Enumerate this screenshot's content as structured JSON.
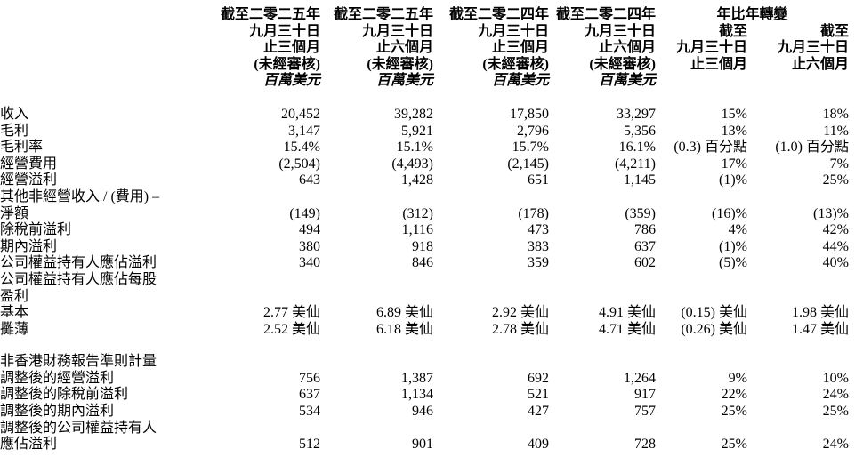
{
  "table": {
    "period_columns": [
      {
        "lines": [
          "截至二零二五年",
          "九月三十日",
          "止三個月",
          "(未經審核)",
          "百萬美元"
        ]
      },
      {
        "lines": [
          "截至二零二五年",
          "九月三十日",
          "止六個月",
          "(未經審核)",
          "百萬美元"
        ]
      },
      {
        "lines": [
          "截至二零二四年",
          "九月三十日",
          "止三個月",
          "(未經審核)",
          "百萬美元"
        ]
      },
      {
        "lines": [
          "截至二零二四年",
          "九月三十日",
          "止六個月",
          "(未經審核)",
          "百萬美元"
        ]
      }
    ],
    "yoy": {
      "title": "年比年轉變",
      "columns": [
        {
          "lines": [
            "截至",
            "九月三十日",
            "止三個月"
          ]
        },
        {
          "lines": [
            "截至",
            "九月三十日",
            "止六個月"
          ]
        }
      ]
    },
    "rows": [
      {
        "label": "收入",
        "indent": 0,
        "values": [
          "20,452",
          "39,282",
          "17,850",
          "33,297",
          "15%",
          "18%"
        ]
      },
      {
        "label": "毛利",
        "indent": 0,
        "values": [
          "3,147",
          "5,921",
          "2,796",
          "5,356",
          "13%",
          "11%"
        ]
      },
      {
        "label": "毛利率",
        "indent": 0,
        "values": [
          "15.4%",
          "15.1%",
          "15.7%",
          "16.1%",
          "(0.3) 百分點",
          "(1.0) 百分點"
        ]
      },
      {
        "label": "經營費用",
        "indent": 0,
        "values": [
          "(2,504)",
          "(4,493)",
          "(2,145)",
          "(4,211)",
          "17%",
          "7%"
        ]
      },
      {
        "label": "經營溢利",
        "indent": 0,
        "values": [
          "643",
          "1,428",
          "651",
          "1,145",
          "(1)%",
          "25%"
        ]
      },
      {
        "label": "其他非經營收入 / (費用) –",
        "indent": 0,
        "values": [
          "",
          "",
          "",
          "",
          "",
          ""
        ]
      },
      {
        "label": "淨額",
        "indent": 1,
        "values": [
          "(149)",
          "(312)",
          "(178)",
          "(359)",
          "(16)%",
          "(13)%"
        ]
      },
      {
        "label": "除稅前溢利",
        "indent": 0,
        "values": [
          "494",
          "1,116",
          "473",
          "786",
          "4%",
          "42%"
        ]
      },
      {
        "label": "期內溢利",
        "indent": 0,
        "values": [
          "380",
          "918",
          "383",
          "637",
          "(1)%",
          "44%"
        ]
      },
      {
        "label": "公司權益持有人應佔溢利",
        "indent": 0,
        "values": [
          "340",
          "846",
          "359",
          "602",
          "(5)%",
          "40%"
        ]
      },
      {
        "label": "公司權益持有人應佔每股",
        "indent": 0,
        "values": [
          "",
          "",
          "",
          "",
          "",
          ""
        ]
      },
      {
        "label": "盈利",
        "indent": 1,
        "values": [
          "",
          "",
          "",
          "",
          "",
          ""
        ]
      },
      {
        "label": "基本",
        "indent": 1,
        "values": [
          "2.77 美仙",
          "6.89 美仙",
          "2.92 美仙",
          "4.91 美仙",
          "(0.15) 美仙",
          "1.98 美仙"
        ]
      },
      {
        "label": "攤薄",
        "indent": 1,
        "values": [
          "2.52 美仙",
          "6.18 美仙",
          "2.78 美仙",
          "4.71 美仙",
          "(0.26) 美仙",
          "1.47 美仙"
        ]
      },
      {
        "label": "非香港財務報告準則計量",
        "indent": 0,
        "gap_before": true,
        "values": [
          "",
          "",
          "",
          "",
          "",
          ""
        ]
      },
      {
        "label": "調整後的經營溢利",
        "indent": 1,
        "values": [
          "756",
          "1,387",
          "692",
          "1,264",
          "9%",
          "10%"
        ]
      },
      {
        "label": "調整後的除稅前溢利",
        "indent": 1,
        "values": [
          "637",
          "1,134",
          "521",
          "917",
          "22%",
          "24%"
        ]
      },
      {
        "label": "調整後的期內溢利",
        "indent": 1,
        "values": [
          "534",
          "946",
          "427",
          "757",
          "25%",
          "25%"
        ]
      },
      {
        "label": "調整後的公司權益持有人",
        "indent": 1,
        "values": [
          "",
          "",
          "",
          "",
          "",
          ""
        ]
      },
      {
        "label": "應佔溢利",
        "indent": 2,
        "values": [
          "512",
          "901",
          "409",
          "728",
          "25%",
          "24%"
        ]
      }
    ]
  }
}
